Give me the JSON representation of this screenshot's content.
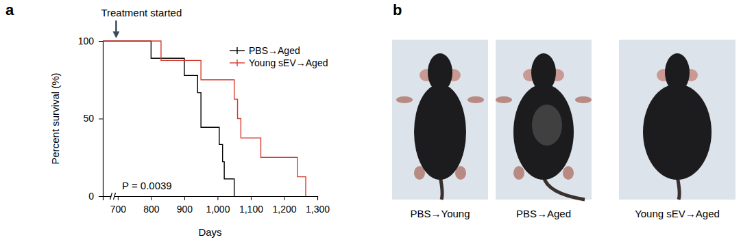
{
  "chart_data": {
    "type": "step",
    "panel": "a",
    "x_label": "Days",
    "y_label": "Percent survival (%)",
    "xlim": [
      655,
      1300
    ],
    "xticks": [
      700,
      800,
      900,
      {
        "value": 1000,
        "label": "1,000"
      },
      {
        "value": 1100,
        "label": "1,100"
      },
      {
        "value": 1200,
        "label": "1,200"
      },
      {
        "value": 1300,
        "label": "1,300"
      }
    ],
    "ylim": [
      0,
      100
    ],
    "yticks": [
      0,
      50,
      100
    ],
    "legend": "top-right",
    "annotations": [
      {
        "text": "Treatment started",
        "x": 695
      },
      {
        "text": "P = 0.0039"
      }
    ],
    "series": [
      {
        "name": "PBS→Aged",
        "color": "#000000",
        "line_style": "solid",
        "marker": "tick",
        "x": [
          655,
          800,
          900,
          940,
          950,
          1005,
          1015,
          1020,
          1050
        ],
        "values": [
          100,
          88.9,
          77.8,
          66.7,
          44.4,
          33.3,
          22.2,
          11.1,
          0
        ]
      },
      {
        "name": "Young sEV→Aged",
        "color": "#d63a2f",
        "line_style": "solid",
        "marker": "tick",
        "x": [
          655,
          830,
          950,
          1050,
          1060,
          1070,
          1130,
          1240,
          1265
        ],
        "values": [
          100,
          87.5,
          75,
          62.5,
          50,
          37.5,
          25,
          12.5,
          0
        ]
      }
    ]
  },
  "photos": {
    "panel": "b",
    "labels": [
      "PBS→Young",
      "PBS→Aged",
      "Young sEV→Aged"
    ]
  }
}
